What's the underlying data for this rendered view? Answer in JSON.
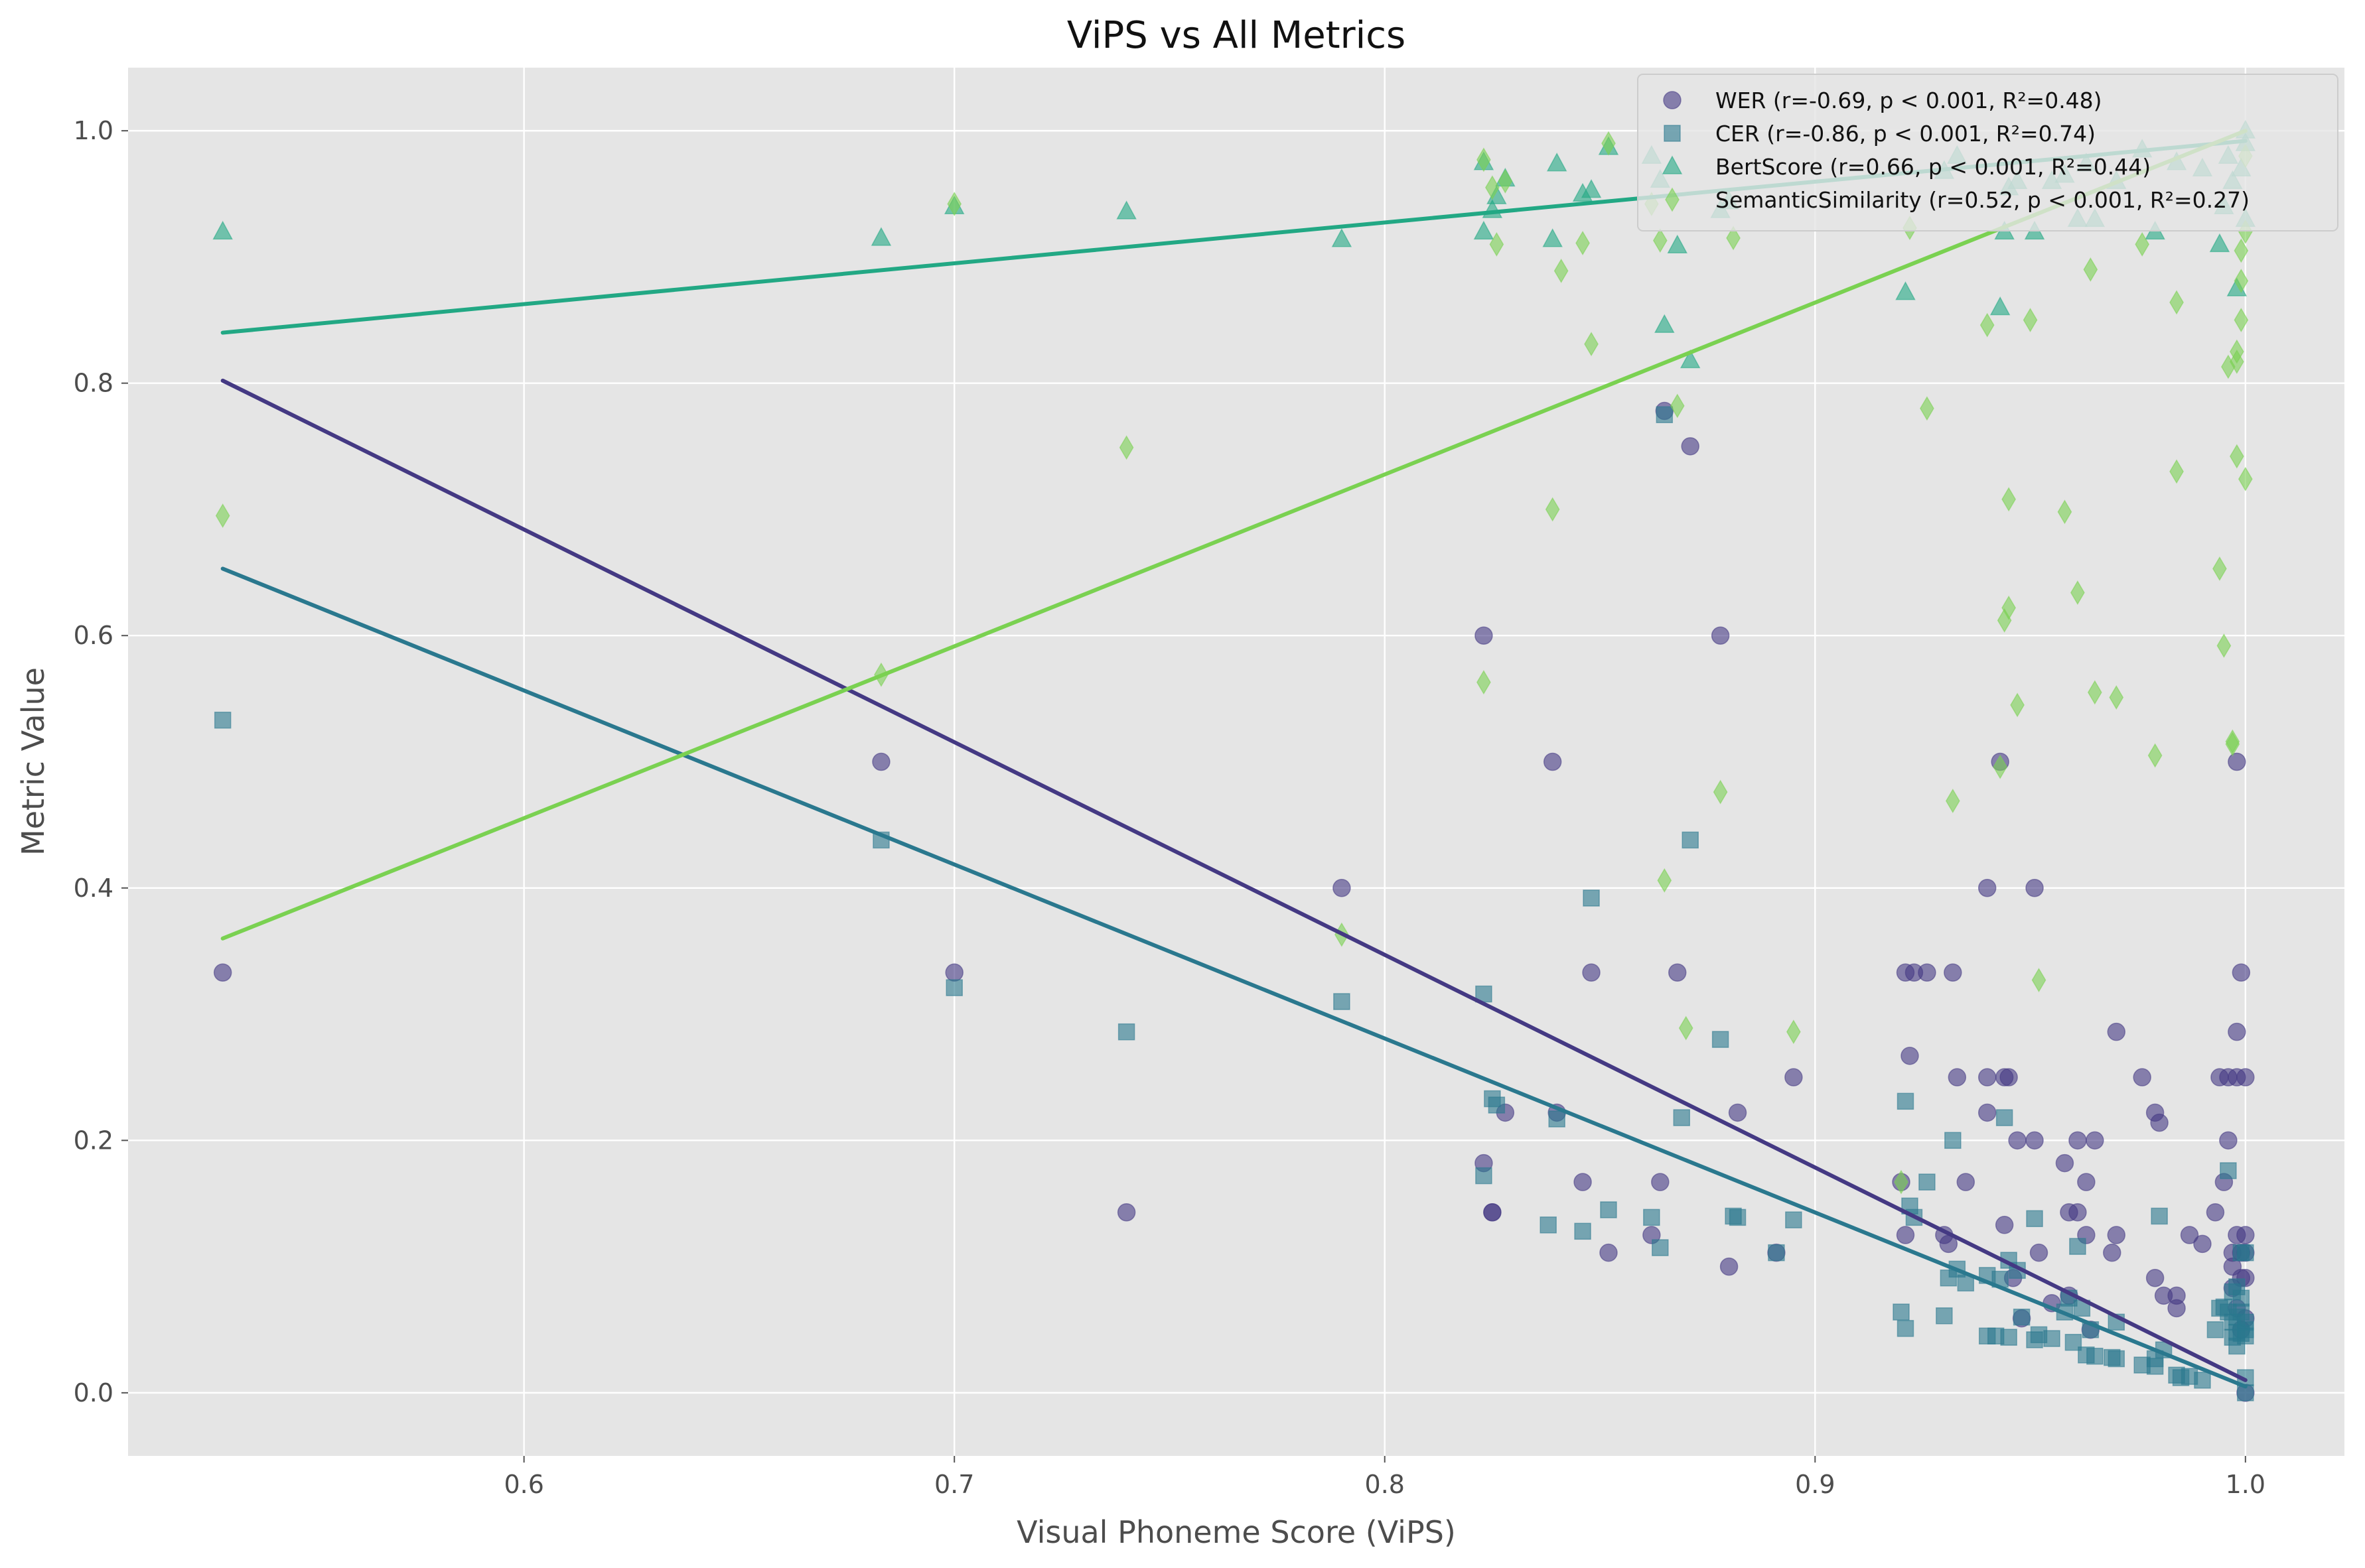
{
  "chart_data": {
    "type": "scatter",
    "title": "ViPS vs All Metrics",
    "xlabel": "Visual Phoneme Score (ViPS)",
    "ylabel": "Metric Value",
    "xlim": [
      0.508,
      1.023
    ],
    "ylim": [
      -0.05,
      1.05
    ],
    "x_ticks": [
      0.6,
      0.7,
      0.8,
      0.9,
      1.0
    ],
    "x_tick_labels": [
      "0.6",
      "0.7",
      "0.8",
      "0.9",
      "1.0"
    ],
    "y_ticks": [
      0.0,
      0.2,
      0.4,
      0.6,
      0.8,
      1.0
    ],
    "y_tick_labels": [
      "0.0",
      "0.2",
      "0.4",
      "0.6",
      "0.8",
      "1.0"
    ],
    "grid": true,
    "legend_position": "top-right",
    "series": [
      {
        "name": "WER (r=-0.69, p < 0.001, R²=0.48)",
        "marker": "circle",
        "color": "#443983",
        "regression": {
          "x": [
            0.53,
            1.0
          ],
          "y": [
            0.802,
            0.01
          ]
        },
        "points": [
          [
            0.53,
            0.333
          ],
          [
            0.683,
            0.5
          ],
          [
            0.7,
            0.333
          ],
          [
            0.74,
            0.143
          ],
          [
            0.79,
            0.4
          ],
          [
            0.823,
            0.6
          ],
          [
            0.823,
            0.182
          ],
          [
            0.825,
            0.143
          ],
          [
            0.825,
            0.143
          ],
          [
            0.828,
            0.222
          ],
          [
            0.839,
            0.5
          ],
          [
            0.84,
            0.222
          ],
          [
            0.846,
            0.167
          ],
          [
            0.848,
            0.333
          ],
          [
            0.852,
            0.111
          ],
          [
            0.862,
            0.125
          ],
          [
            0.864,
            0.167
          ],
          [
            0.865,
            0.778
          ],
          [
            0.868,
            0.333
          ],
          [
            0.871,
            0.75
          ],
          [
            0.878,
            0.6
          ],
          [
            0.88,
            0.1
          ],
          [
            0.882,
            0.222
          ],
          [
            0.891,
            0.111
          ],
          [
            0.895,
            0.25
          ],
          [
            0.92,
            0.167
          ],
          [
            0.921,
            0.333
          ],
          [
            0.921,
            0.125
          ],
          [
            0.922,
            0.267
          ],
          [
            0.923,
            0.333
          ],
          [
            0.926,
            0.333
          ],
          [
            0.93,
            0.125
          ],
          [
            0.931,
            0.118
          ],
          [
            0.932,
            0.333
          ],
          [
            0.933,
            0.25
          ],
          [
            0.935,
            0.167
          ],
          [
            0.94,
            0.4
          ],
          [
            0.94,
            0.25
          ],
          [
            0.94,
            0.222
          ],
          [
            0.943,
            0.5
          ],
          [
            0.944,
            0.25
          ],
          [
            0.944,
            0.133
          ],
          [
            0.945,
            0.25
          ],
          [
            0.946,
            0.091
          ],
          [
            0.947,
            0.2
          ],
          [
            0.948,
            0.059
          ],
          [
            0.951,
            0.4
          ],
          [
            0.951,
            0.2
          ],
          [
            0.952,
            0.111
          ],
          [
            0.955,
            0.071
          ],
          [
            0.958,
            0.182
          ],
          [
            0.959,
            0.077
          ],
          [
            0.959,
            0.143
          ],
          [
            0.961,
            0.2
          ],
          [
            0.961,
            0.143
          ],
          [
            0.963,
            0.125
          ],
          [
            0.963,
            0.167
          ],
          [
            0.964,
            0.05
          ],
          [
            0.965,
            0.2
          ],
          [
            0.969,
            0.111
          ],
          [
            0.97,
            0.286
          ],
          [
            0.97,
            0.125
          ],
          [
            0.976,
            0.25
          ],
          [
            0.979,
            0.222
          ],
          [
            0.979,
            0.091
          ],
          [
            0.98,
            0.214
          ],
          [
            0.981,
            0.077
          ],
          [
            0.984,
            0.067
          ],
          [
            0.984,
            0.077
          ],
          [
            0.987,
            0.125
          ],
          [
            0.99,
            0.118
          ],
          [
            0.993,
            0.143
          ],
          [
            0.994,
            0.25
          ],
          [
            0.995,
            0.167
          ],
          [
            0.996,
            0.2
          ],
          [
            0.996,
            0.25
          ],
          [
            0.997,
            0.1
          ],
          [
            0.997,
            0.083
          ],
          [
            0.997,
            0.111
          ],
          [
            0.998,
            0.5
          ],
          [
            0.998,
            0.25
          ],
          [
            0.998,
            0.286
          ],
          [
            0.998,
            0.125
          ],
          [
            0.998,
            0.067
          ],
          [
            0.999,
            0.333
          ],
          [
            0.999,
            0.111
          ],
          [
            0.999,
            0.091
          ],
          [
            0.999,
            0.05
          ],
          [
            1.0,
            0.25
          ],
          [
            1.0,
            0.125
          ],
          [
            1.0,
            0.111
          ],
          [
            1.0,
            0.091
          ],
          [
            1.0,
            0.059
          ],
          [
            1.0,
            0.0
          ]
        ]
      },
      {
        "name": "CER (r=-0.86, p < 0.001, R²=0.74)",
        "marker": "square",
        "color": "#2a788e",
        "regression": {
          "x": [
            0.53,
            1.0
          ],
          "y": [
            0.653,
            0.005
          ]
        },
        "points": [
          [
            0.53,
            0.533
          ],
          [
            0.683,
            0.438
          ],
          [
            0.7,
            0.321
          ],
          [
            0.74,
            0.286
          ],
          [
            0.79,
            0.31
          ],
          [
            0.823,
            0.316
          ],
          [
            0.823,
            0.172
          ],
          [
            0.825,
            0.233
          ],
          [
            0.826,
            0.228
          ],
          [
            0.84,
            0.217
          ],
          [
            0.838,
            0.133
          ],
          [
            0.846,
            0.128
          ],
          [
            0.848,
            0.392
          ],
          [
            0.852,
            0.145
          ],
          [
            0.862,
            0.139
          ],
          [
            0.864,
            0.115
          ],
          [
            0.865,
            0.775
          ],
          [
            0.869,
            0.218
          ],
          [
            0.871,
            0.438
          ],
          [
            0.878,
            0.28
          ],
          [
            0.881,
            0.14
          ],
          [
            0.882,
            0.139
          ],
          [
            0.891,
            0.111
          ],
          [
            0.895,
            0.137
          ],
          [
            0.92,
            0.064
          ],
          [
            0.921,
            0.051
          ],
          [
            0.921,
            0.231
          ],
          [
            0.922,
            0.148
          ],
          [
            0.923,
            0.139
          ],
          [
            0.926,
            0.167
          ],
          [
            0.93,
            0.061
          ],
          [
            0.931,
            0.091
          ],
          [
            0.932,
            0.2
          ],
          [
            0.933,
            0.098
          ],
          [
            0.935,
            0.087
          ],
          [
            0.94,
            0.045
          ],
          [
            0.94,
            0.093
          ],
          [
            0.942,
            0.045
          ],
          [
            0.943,
            0.09
          ],
          [
            0.944,
            0.218
          ],
          [
            0.945,
            0.044
          ],
          [
            0.945,
            0.105
          ],
          [
            0.947,
            0.097
          ],
          [
            0.948,
            0.06
          ],
          [
            0.951,
            0.138
          ],
          [
            0.951,
            0.042
          ],
          [
            0.952,
            0.046
          ],
          [
            0.955,
            0.043
          ],
          [
            0.958,
            0.064
          ],
          [
            0.959,
            0.075
          ],
          [
            0.96,
            0.04
          ],
          [
            0.961,
            0.116
          ],
          [
            0.962,
            0.067
          ],
          [
            0.963,
            0.03
          ],
          [
            0.964,
            0.05
          ],
          [
            0.965,
            0.029
          ],
          [
            0.969,
            0.028
          ],
          [
            0.97,
            0.056
          ],
          [
            0.97,
            0.027
          ],
          [
            0.976,
            0.022
          ],
          [
            0.979,
            0.021
          ],
          [
            0.979,
            0.027
          ],
          [
            0.98,
            0.14
          ],
          [
            0.981,
            0.034
          ],
          [
            0.984,
            0.014
          ],
          [
            0.985,
            0.012
          ],
          [
            0.987,
            0.013
          ],
          [
            0.99,
            0.01
          ],
          [
            0.993,
            0.05
          ],
          [
            0.994,
            0.067
          ],
          [
            0.995,
            0.068
          ],
          [
            0.996,
            0.064
          ],
          [
            0.996,
            0.176
          ],
          [
            0.997,
            0.044
          ],
          [
            0.997,
            0.08
          ],
          [
            0.997,
            0.056
          ],
          [
            0.998,
            0.048
          ],
          [
            0.998,
            0.037
          ],
          [
            0.998,
            0.084
          ],
          [
            0.998,
            0.06
          ],
          [
            0.999,
            0.111
          ],
          [
            0.999,
            0.075
          ],
          [
            0.999,
            0.064
          ],
          [
            0.999,
            0.047
          ],
          [
            1.0,
            0.111
          ],
          [
            1.0,
            0.056
          ],
          [
            1.0,
            0.05
          ],
          [
            1.0,
            0.045
          ],
          [
            1.0,
            0.012
          ],
          [
            1.0,
            0.0
          ]
        ]
      },
      {
        "name": "BertScore (r=0.66, p < 0.001, R²=0.44)",
        "marker": "triangle",
        "color": "#22a884",
        "regression": {
          "x": [
            0.53,
            1.0
          ],
          "y": [
            0.84,
            0.992
          ]
        },
        "points": [
          [
            0.53,
            0.92
          ],
          [
            0.683,
            0.915
          ],
          [
            0.7,
            0.94
          ],
          [
            0.74,
            0.936
          ],
          [
            0.79,
            0.914
          ],
          [
            0.823,
            0.975
          ],
          [
            0.823,
            0.92
          ],
          [
            0.825,
            0.937
          ],
          [
            0.826,
            0.948
          ],
          [
            0.828,
            0.962
          ],
          [
            0.839,
            0.914
          ],
          [
            0.84,
            0.974
          ],
          [
            0.846,
            0.95
          ],
          [
            0.848,
            0.953
          ],
          [
            0.852,
            0.987
          ],
          [
            0.862,
            0.98
          ],
          [
            0.864,
            0.961
          ],
          [
            0.865,
            0.846
          ],
          [
            0.868,
            0.909
          ],
          [
            0.871,
            0.818
          ],
          [
            0.878,
            0.937
          ],
          [
            0.88,
            0.944
          ],
          [
            0.921,
            0.872
          ],
          [
            0.93,
            0.968
          ],
          [
            0.933,
            0.98
          ],
          [
            0.943,
            0.86
          ],
          [
            0.944,
            0.92
          ],
          [
            0.945,
            0.955
          ],
          [
            0.947,
            0.96
          ],
          [
            0.951,
            0.92
          ],
          [
            0.955,
            0.96
          ],
          [
            0.958,
            0.965
          ],
          [
            0.961,
            0.93
          ],
          [
            0.963,
            0.974
          ],
          [
            0.965,
            0.93
          ],
          [
            0.97,
            0.96
          ],
          [
            0.976,
            0.985
          ],
          [
            0.979,
            0.92
          ],
          [
            0.984,
            0.975
          ],
          [
            0.99,
            0.97
          ],
          [
            0.994,
            0.91
          ],
          [
            0.995,
            0.94
          ],
          [
            0.996,
            0.98
          ],
          [
            0.997,
            0.96
          ],
          [
            0.998,
            0.875
          ],
          [
            0.999,
            0.97
          ],
          [
            1.0,
            0.93
          ],
          [
            1.0,
            0.99
          ],
          [
            1.0,
            1.0
          ]
        ]
      },
      {
        "name": "SemanticSimilarity (r=0.52, p < 0.001, R²=0.27)",
        "marker": "diamond",
        "color": "#7ad151",
        "regression": {
          "x": [
            0.53,
            1.0
          ],
          "y": [
            0.36,
            1.0
          ]
        },
        "points": [
          [
            0.53,
            0.695
          ],
          [
            0.683,
            0.569
          ],
          [
            0.7,
            0.942
          ],
          [
            0.74,
            0.749
          ],
          [
            0.79,
            0.363
          ],
          [
            0.823,
            0.977
          ],
          [
            0.823,
            0.563
          ],
          [
            0.825,
            0.955
          ],
          [
            0.826,
            0.91
          ],
          [
            0.828,
            0.96
          ],
          [
            0.839,
            0.7
          ],
          [
            0.841,
            0.889
          ],
          [
            0.846,
            0.911
          ],
          [
            0.848,
            0.831
          ],
          [
            0.852,
            0.99
          ],
          [
            0.862,
            0.942
          ],
          [
            0.864,
            0.913
          ],
          [
            0.865,
            0.406
          ],
          [
            0.868,
            0.782
          ],
          [
            0.87,
            0.289
          ],
          [
            0.878,
            0.476
          ],
          [
            0.881,
            0.915
          ],
          [
            0.895,
            0.286
          ],
          [
            0.92,
            0.167
          ],
          [
            0.922,
            0.923
          ],
          [
            0.926,
            0.78
          ],
          [
            0.932,
            0.469
          ],
          [
            0.94,
            0.846
          ],
          [
            0.943,
            0.496
          ],
          [
            0.944,
            0.612
          ],
          [
            0.945,
            0.622
          ],
          [
            0.945,
            0.708
          ],
          [
            0.947,
            0.545
          ],
          [
            0.95,
            0.85
          ],
          [
            0.952,
            0.327
          ],
          [
            0.958,
            0.698
          ],
          [
            0.961,
            0.634
          ],
          [
            0.964,
            0.89
          ],
          [
            0.965,
            0.555
          ],
          [
            0.97,
            0.551
          ],
          [
            0.976,
            0.91
          ],
          [
            0.979,
            0.505
          ],
          [
            0.984,
            0.864
          ],
          [
            0.984,
            0.73
          ],
          [
            0.994,
            0.653
          ],
          [
            0.995,
            0.592
          ],
          [
            0.996,
            0.813
          ],
          [
            0.997,
            0.516
          ],
          [
            0.997,
            0.514
          ],
          [
            0.998,
            0.817
          ],
          [
            0.998,
            0.825
          ],
          [
            0.998,
            0.742
          ],
          [
            0.999,
            0.85
          ],
          [
            0.999,
            0.881
          ],
          [
            0.999,
            0.905
          ],
          [
            1.0,
            0.724
          ],
          [
            1.0,
            0.92
          ],
          [
            1.0,
            0.98
          ]
        ]
      }
    ]
  }
}
